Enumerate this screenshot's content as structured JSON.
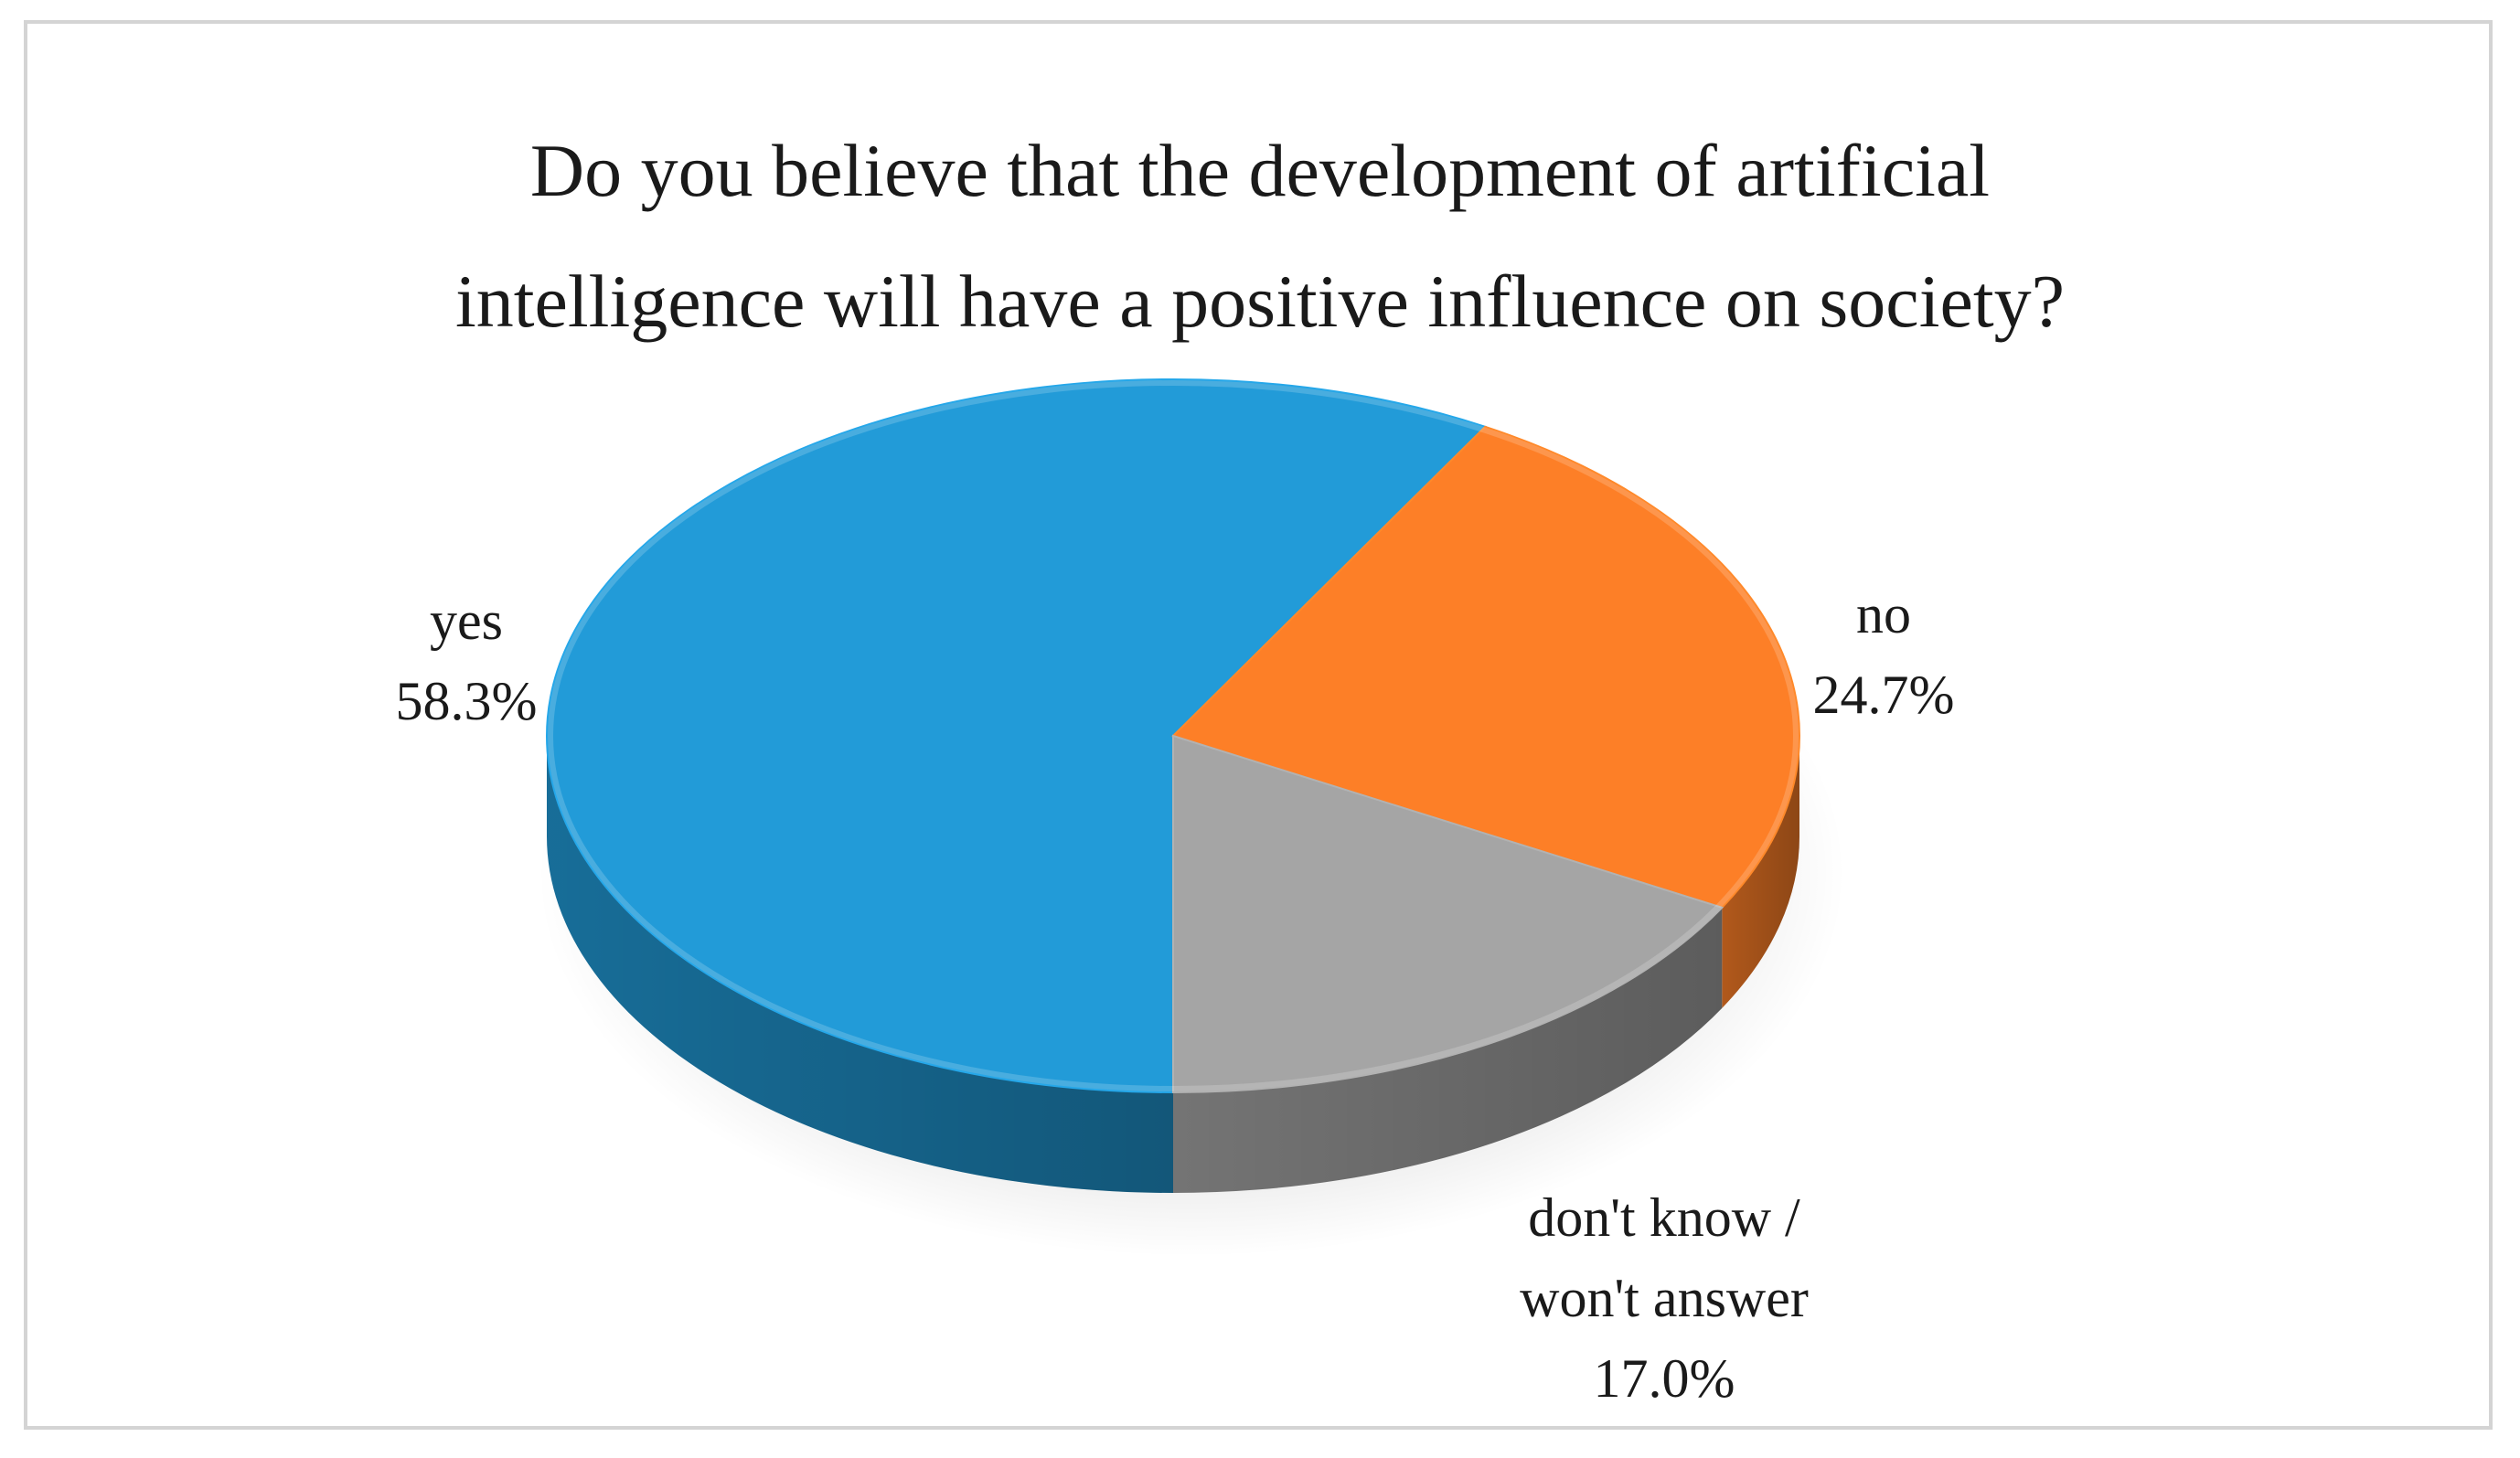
{
  "chart_data": {
    "type": "pie",
    "title": "Do you believe that the development of artificial intelligence will have a positive influence on society?",
    "title_lines": [
      "Do you believe that the development of artificial",
      "intelligence will have a positive influence on society?"
    ],
    "style": "3d",
    "slices": [
      {
        "label": "yes",
        "label_lines": [
          "yes"
        ],
        "value": 58.3,
        "value_label": "58.3%",
        "color": "#229bd8"
      },
      {
        "label": "no",
        "label_lines": [
          "no"
        ],
        "value": 24.7,
        "value_label": "24.7%",
        "color": "#fd7f27"
      },
      {
        "label": "don't know / won't answer",
        "label_lines": [
          "don't know /",
          "won't answer"
        ],
        "value": 17.0,
        "value_label": "17.0%",
        "color": "#a5a5a5"
      }
    ]
  }
}
